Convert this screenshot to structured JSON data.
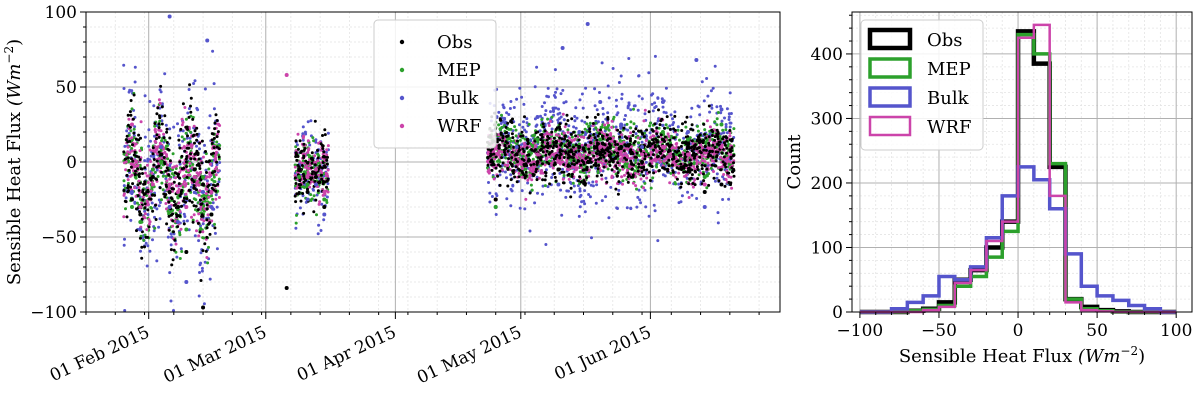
{
  "chart_data": [
    {
      "type": "scatter",
      "ylabel_text": "Sensible Heat Flux",
      "ylabel_unit": "(Wm",
      "ylabel_exp": "−2",
      "ylabel_close": ")",
      "ylim": [
        -100,
        100
      ],
      "yticks": [
        -100,
        -50,
        0,
        50,
        100
      ],
      "xlim": [
        "2015-01-17",
        "2015-07-02"
      ],
      "xticks": [
        {
          "date": "2015-02-01",
          "label": "01 Feb 2015"
        },
        {
          "date": "2015-03-01",
          "label": "01 Mar 2015"
        },
        {
          "date": "2015-04-01",
          "label": "01 Apr 2015"
        },
        {
          "date": "2015-05-01",
          "label": "01 May 2015"
        },
        {
          "date": "2015-06-01",
          "label": "01 Jun 2015"
        }
      ],
      "grid": true,
      "legend_position": "top-center",
      "series": [
        {
          "name": "Obs",
          "color": "#000000"
        },
        {
          "name": "MEP",
          "color": "#2ca02c"
        },
        {
          "name": "Bulk",
          "color": "#5555cc"
        },
        {
          "name": "WRF",
          "color": "#cc44aa"
        }
      ],
      "data_segments": [
        {
          "start": "2015-01-26",
          "end": "2015-02-18",
          "profile": "winter"
        },
        {
          "start": "2015-03-08",
          "end": "2015-03-16",
          "profile": "march"
        },
        {
          "start": "2015-04-23",
          "end": "2015-06-21",
          "profile": "summer"
        }
      ],
      "series_x": {
        "Obs": [
          "2015-01-28",
          "2015-01-30",
          "2015-02-02",
          "2015-02-04",
          "2015-02-06",
          "2015-02-08",
          "2015-02-10",
          "2015-02-12",
          "2015-02-14",
          "2015-02-16",
          "2015-03-09",
          "2015-03-11",
          "2015-03-13",
          "2015-03-15",
          "2015-04-25",
          "2015-04-30",
          "2015-05-05",
          "2015-05-10",
          "2015-05-15",
          "2015-05-20",
          "2015-05-25",
          "2015-05-30",
          "2015-06-04",
          "2015-06-10",
          "2015-06-14",
          "2015-06-18"
        ],
        "MEP": [
          "2015-01-28",
          "2015-01-30",
          "2015-02-02",
          "2015-02-04",
          "2015-02-06",
          "2015-02-08",
          "2015-02-10",
          "2015-02-12",
          "2015-02-14",
          "2015-02-16",
          "2015-03-09",
          "2015-03-11",
          "2015-03-13",
          "2015-03-15",
          "2015-04-25",
          "2015-04-30",
          "2015-05-05",
          "2015-05-10",
          "2015-05-15",
          "2015-05-20",
          "2015-05-25",
          "2015-05-30",
          "2015-06-04",
          "2015-06-10",
          "2015-06-14",
          "2015-06-18"
        ],
        "Bulk": [
          "2015-01-28",
          "2015-01-30",
          "2015-02-02",
          "2015-02-04",
          "2015-02-06",
          "2015-02-08",
          "2015-02-10",
          "2015-02-12",
          "2015-02-14",
          "2015-02-16",
          "2015-03-09",
          "2015-03-11",
          "2015-03-13",
          "2015-03-15",
          "2015-04-25",
          "2015-04-30",
          "2015-05-05",
          "2015-05-10",
          "2015-05-15",
          "2015-05-20",
          "2015-05-25",
          "2015-05-30",
          "2015-06-04",
          "2015-06-10",
          "2015-06-14",
          "2015-06-18"
        ],
        "WRF": [
          "2015-01-28",
          "2015-01-30",
          "2015-02-02",
          "2015-02-04",
          "2015-02-06",
          "2015-02-08",
          "2015-02-10",
          "2015-02-12",
          "2015-02-14",
          "2015-02-16",
          "2015-03-09",
          "2015-03-11",
          "2015-03-13",
          "2015-03-15",
          "2015-04-25",
          "2015-04-30",
          "2015-05-05",
          "2015-05-10",
          "2015-05-15",
          "2015-05-20",
          "2015-05-25",
          "2015-05-30",
          "2015-06-04",
          "2015-06-10",
          "2015-06-14",
          "2015-06-18"
        ]
      },
      "series_y": {
        "Obs": [
          -25,
          -35,
          -10,
          5,
          -20,
          -30,
          -60,
          -5,
          -15,
          -35,
          -5,
          -20,
          -10,
          -30,
          -25,
          5,
          0,
          -5,
          10,
          5,
          10,
          0,
          15,
          10,
          -20,
          -15
        ],
        "MEP": [
          -30,
          -40,
          -5,
          0,
          -15,
          -30,
          -45,
          -10,
          -10,
          -35,
          -10,
          -15,
          -5,
          -25,
          -30,
          5,
          15,
          -5,
          5,
          15,
          10,
          5,
          20,
          15,
          -10,
          25
        ],
        "Bulk": [
          -20,
          -45,
          -5,
          10,
          -30,
          -40,
          -80,
          -10,
          -20,
          -30,
          -5,
          -25,
          -15,
          -35,
          -30,
          10,
          30,
          -15,
          20,
          40,
          25,
          10,
          40,
          20,
          -30,
          35
        ],
        "WRF": [
          25,
          -30,
          -15,
          5,
          -15,
          -20,
          -30,
          -10,
          -15,
          -20,
          -5,
          -10,
          -5,
          -20,
          -25,
          5,
          5,
          0,
          5,
          10,
          5,
          5,
          10,
          5,
          -15,
          10
        ]
      },
      "extreme_points": [
        {
          "series": "Bulk",
          "x": "2015-02-06",
          "y": 97
        },
        {
          "series": "Bulk",
          "x": "2015-02-15",
          "y": 81
        },
        {
          "series": "WRF",
          "x": "2015-03-06",
          "y": 58
        },
        {
          "series": "Obs",
          "x": "2015-03-06",
          "y": -84
        },
        {
          "series": "Obs",
          "x": "2015-02-14",
          "y": -97
        },
        {
          "series": "Bulk",
          "x": "2015-05-17",
          "y": 92
        },
        {
          "series": "Bulk",
          "x": "2015-06-12",
          "y": 68
        },
        {
          "series": "Bulk",
          "x": "2015-05-11",
          "y": 76
        }
      ]
    },
    {
      "type": "histogram",
      "xlabel_text": "Sensible Heat Flux",
      "xlabel_unit": "(Wm",
      "xlabel_exp": "−2",
      "xlabel_close": ")",
      "ylabel": "Count",
      "xlim": [
        -105,
        110
      ],
      "ylim": [
        0,
        465
      ],
      "xticks": [
        -100,
        -50,
        0,
        50,
        100
      ],
      "yticks": [
        0,
        100,
        200,
        300,
        400
      ],
      "grid": true,
      "legend_position": "top-left",
      "bin_edges": [
        -100,
        -90,
        -80,
        -70,
        -60,
        -50,
        -40,
        -30,
        -20,
        -10,
        0,
        10,
        20,
        30,
        40,
        50,
        60,
        70,
        80,
        90,
        100
      ],
      "series": [
        {
          "name": "Obs",
          "color": "#000000",
          "lw": 4.5,
          "counts": [
            0,
            0,
            0,
            2,
            5,
            15,
            50,
            65,
            100,
            140,
            435,
            385,
            225,
            20,
            8,
            3,
            1,
            0,
            0,
            0
          ]
        },
        {
          "name": "MEP",
          "color": "#2ca02c",
          "lw": 3.5,
          "counts": [
            0,
            0,
            0,
            2,
            4,
            10,
            40,
            55,
            85,
            125,
            430,
            400,
            230,
            20,
            5,
            2,
            0,
            0,
            0,
            0
          ]
        },
        {
          "name": "Bulk",
          "color": "#5555cc",
          "lw": 3.5,
          "counts": [
            0,
            0,
            5,
            15,
            25,
            55,
            50,
            70,
            115,
            180,
            225,
            205,
            160,
            90,
            40,
            25,
            18,
            10,
            5,
            0
          ]
        },
        {
          "name": "WRF",
          "color": "#cc44aa",
          "lw": 2.5,
          "counts": [
            0,
            0,
            0,
            0,
            3,
            8,
            45,
            65,
            110,
            140,
            425,
            445,
            180,
            15,
            3,
            1,
            0,
            0,
            0,
            0
          ]
        }
      ]
    }
  ]
}
